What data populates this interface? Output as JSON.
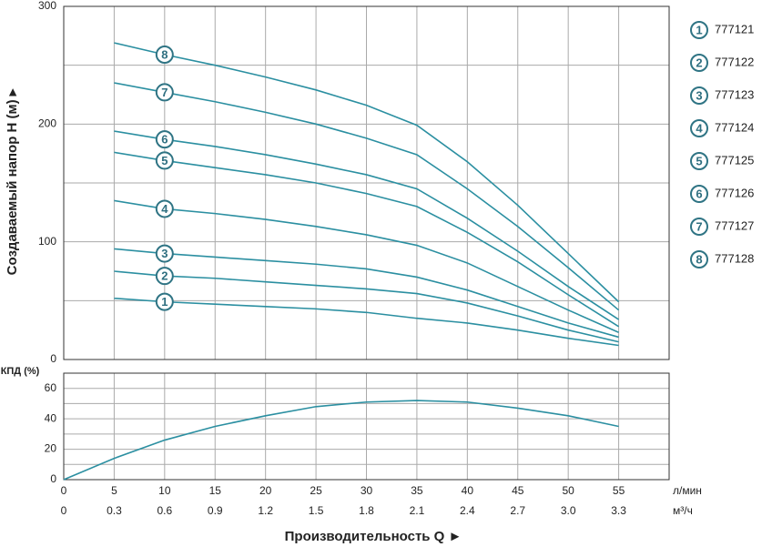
{
  "chart_data": [
    {
      "type": "line",
      "y_label": "Создаваемый напор H (м) ▸",
      "x": [
        5,
        10,
        15,
        20,
        25,
        30,
        35,
        40,
        45,
        50,
        55
      ],
      "xlim": [
        0,
        60
      ],
      "ylim": [
        0,
        300
      ],
      "yticks": [
        0,
        100,
        200,
        300
      ],
      "minor_yticks": [
        50,
        150,
        250
      ],
      "marker_x": 10,
      "grid": true,
      "series": [
        {
          "name": "777121",
          "label": "1",
          "color": "#2b8fa1",
          "values": [
            52,
            49,
            47,
            45,
            43,
            40,
            35,
            31,
            25,
            18,
            12
          ]
        },
        {
          "name": "777122",
          "label": "2",
          "color": "#2b8fa1",
          "values": [
            75,
            71,
            69,
            66,
            63,
            60,
            56,
            48,
            37,
            25,
            15
          ]
        },
        {
          "name": "777123",
          "label": "3",
          "color": "#2b8fa1",
          "values": [
            94,
            90,
            87,
            84,
            81,
            77,
            70,
            59,
            45,
            31,
            19
          ]
        },
        {
          "name": "777124",
          "label": "4",
          "color": "#2b8fa1",
          "values": [
            135,
            128,
            124,
            119,
            113,
            106,
            97,
            82,
            62,
            42,
            23
          ]
        },
        {
          "name": "777125",
          "label": "5",
          "color": "#2b8fa1",
          "values": [
            176,
            169,
            163,
            157,
            150,
            141,
            130,
            108,
            83,
            55,
            28
          ]
        },
        {
          "name": "777126",
          "label": "6",
          "color": "#2b8fa1",
          "values": [
            194,
            187,
            181,
            174,
            166,
            157,
            145,
            120,
            92,
            62,
            34
          ]
        },
        {
          "name": "777127",
          "label": "7",
          "color": "#2b8fa1",
          "values": [
            235,
            227,
            219,
            210,
            200,
            188,
            174,
            145,
            113,
            78,
            42
          ]
        },
        {
          "name": "777128",
          "label": "8",
          "color": "#2b8fa1",
          "values": [
            269,
            259,
            250,
            240,
            229,
            216,
            199,
            168,
            131,
            90,
            49
          ]
        }
      ]
    },
    {
      "type": "line",
      "y_label": "КПД (%)",
      "x_label": "Производительность Q ►",
      "x_unit": "л/мин",
      "x2_unit": "м³/ч",
      "x": [
        0,
        5,
        10,
        15,
        20,
        25,
        30,
        35,
        40,
        45,
        50,
        55
      ],
      "values": [
        0,
        14,
        26,
        35,
        42,
        48,
        51,
        52,
        51,
        47,
        42,
        35
      ],
      "color": "#2b8fa1",
      "xlim": [
        0,
        60
      ],
      "xticks": [
        0,
        5,
        10,
        15,
        20,
        25,
        30,
        35,
        40,
        45,
        50,
        55
      ],
      "x2lim": [
        0,
        3.6
      ],
      "x2ticks": [
        0,
        0.3,
        0.6,
        0.9,
        1.2,
        1.5,
        1.8,
        2.1,
        2.4,
        2.7,
        3.0,
        3.3
      ],
      "ylim": [
        0,
        70
      ],
      "yticks": [
        0,
        20,
        40,
        60
      ],
      "minor_yticks": [
        10,
        30,
        50
      ],
      "grid": true
    }
  ]
}
